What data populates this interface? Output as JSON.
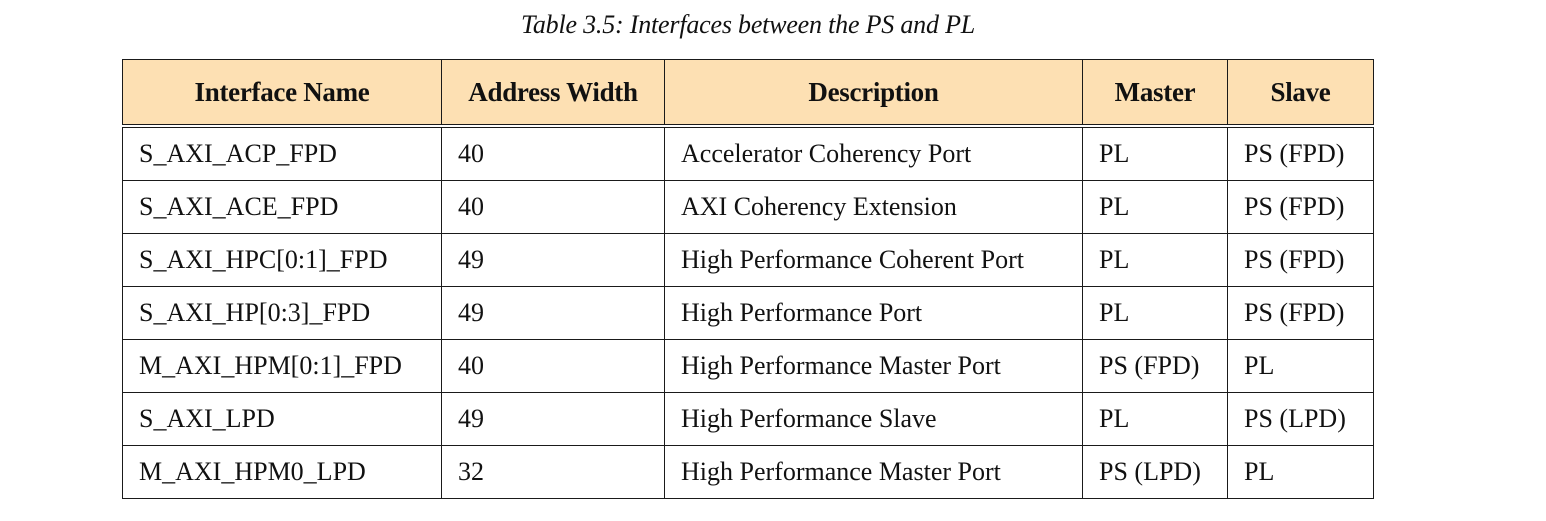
{
  "caption": "Table 3.5: Interfaces between the PS and PL",
  "table": {
    "headers": [
      "Interface Name",
      "Address Width",
      "Description",
      "Master",
      "Slave"
    ],
    "rows": [
      [
        "S_AXI_ACP_FPD",
        "40",
        "Accelerator Coherency Port",
        "PL",
        "PS (FPD)"
      ],
      [
        "S_AXI_ACE_FPD",
        "40",
        "AXI Coherency Extension",
        "PL",
        "PS (FPD)"
      ],
      [
        "S_AXI_HPC[0:1]_FPD",
        "49",
        "High Performance Coherent Port",
        "PL",
        "PS (FPD)"
      ],
      [
        "S_AXI_HP[0:3]_FPD",
        "49",
        "High Performance Port",
        "PL",
        "PS (FPD)"
      ],
      [
        "M_AXI_HPM[0:1]_FPD",
        "40",
        "High Performance Master Port",
        "PS (FPD)",
        "PL"
      ],
      [
        "S_AXI_LPD",
        "49",
        "High Performance Slave",
        "PL",
        "PS (LPD)"
      ],
      [
        "M_AXI_HPM0_LPD",
        "32",
        "High Performance Master Port",
        "PS (LPD)",
        "PL"
      ]
    ]
  },
  "colors": {
    "header_background": "#fde0b3",
    "border": "#1a1a1a",
    "text": "#111111"
  }
}
